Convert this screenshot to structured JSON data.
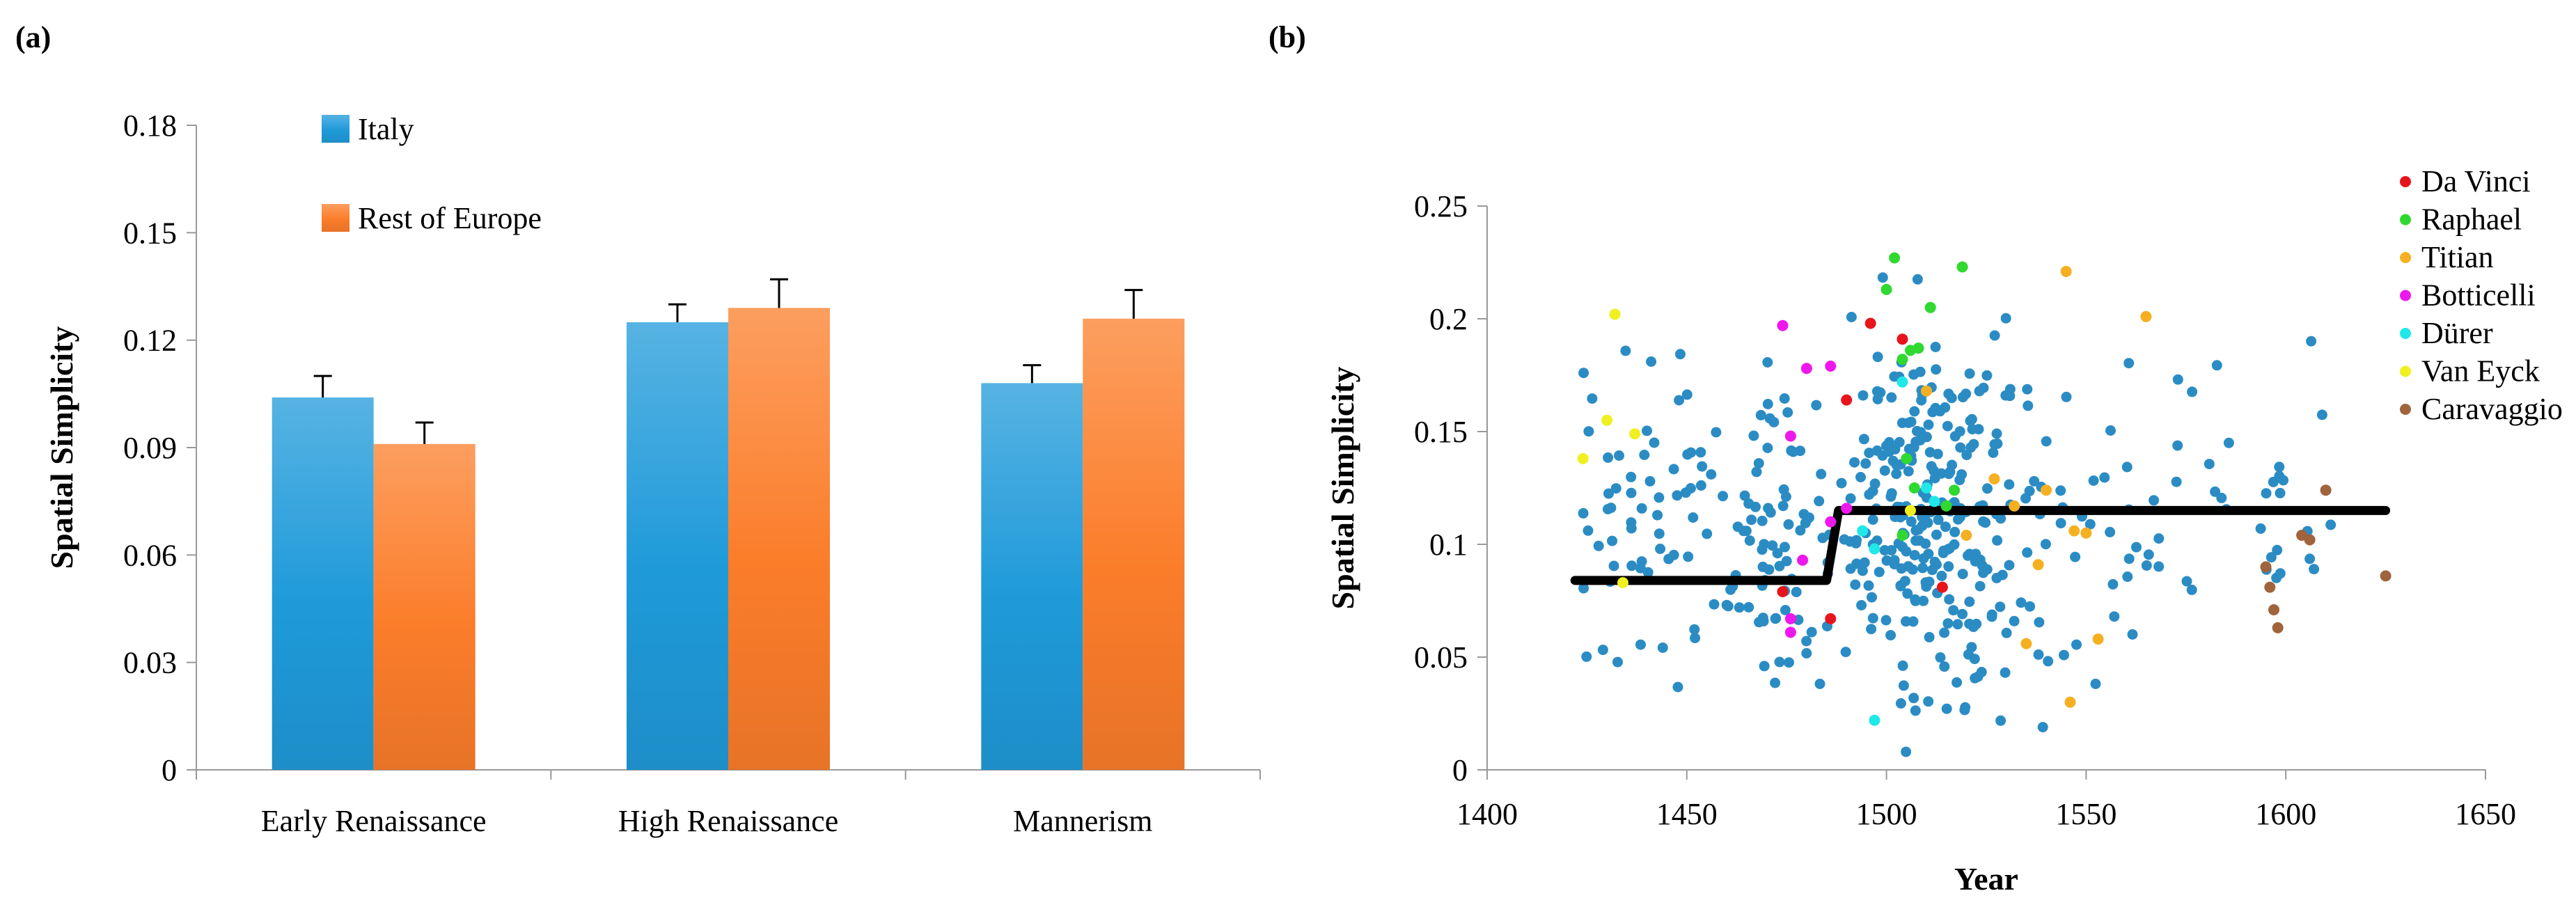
{
  "chart_data": [
    {
      "panel": "(a)",
      "type": "bar",
      "ylabel": "Spatial Simplicity",
      "xlabel": "",
      "ylim": [
        0,
        0.18
      ],
      "yticks": [
        "0",
        "0.03",
        "0.06",
        "0.09",
        "0.12",
        "0.15",
        "0.18"
      ],
      "categories": [
        "Early Renaissance",
        "High Renaissance",
        "Mannerism"
      ],
      "series": [
        {
          "name": "Italy",
          "color": "#1f9ad9",
          "values": [
            0.104,
            0.125,
            0.108
          ],
          "errors": [
            0.006,
            0.005,
            0.005
          ]
        },
        {
          "name": "Rest of Europe",
          "color": "#fb7d2a",
          "values": [
            0.091,
            0.129,
            0.126
          ],
          "errors": [
            0.006,
            0.008,
            0.008
          ]
        }
      ],
      "legend_position": "top-left",
      "error_bars": true
    },
    {
      "panel": "(b)",
      "type": "scatter",
      "xlabel": "Year",
      "ylabel": "Spatial Simplicity",
      "xlim": [
        1400,
        1650
      ],
      "ylim": [
        0,
        0.25
      ],
      "xticks": [
        "1400",
        "1450",
        "1500",
        "1550",
        "1600",
        "1650"
      ],
      "yticks": [
        "0",
        "0.05",
        "0.1",
        "0.15",
        "0.2",
        "0.25"
      ],
      "background_series_color": "#2b8cc4",
      "step_fit": {
        "x": [
          1422,
          1485,
          1488,
          1625
        ],
        "y": [
          0.084,
          0.084,
          0.115,
          0.115
        ],
        "color": "#000000"
      },
      "series": [
        {
          "name": "Da Vinci",
          "color": "#e8141b",
          "points": [
            [
              1474,
              0.079
            ],
            [
              1486,
              0.067
            ],
            [
              1490,
              0.164
            ],
            [
              1496,
              0.198
            ],
            [
              1504,
              0.191
            ],
            [
              1514,
              0.081
            ]
          ]
        },
        {
          "name": "Raphael",
          "color": "#2fd92f",
          "points": [
            [
              1502,
              0.227
            ],
            [
              1504,
              0.182
            ],
            [
              1506,
              0.186
            ],
            [
              1508,
              0.187
            ],
            [
              1511,
              0.205
            ],
            [
              1505,
              0.138
            ],
            [
              1507,
              0.125
            ],
            [
              1504,
              0.104
            ],
            [
              1515,
              0.117
            ],
            [
              1519,
              0.223
            ],
            [
              1517,
              0.124
            ],
            [
              1500,
              0.213
            ]
          ]
        },
        {
          "name": "Titian",
          "color": "#f5b021",
          "points": [
            [
              1510,
              0.168
            ],
            [
              1520,
              0.104
            ],
            [
              1527,
              0.129
            ],
            [
              1532,
              0.117
            ],
            [
              1538,
              0.091
            ],
            [
              1540,
              0.124
            ],
            [
              1545,
              0.221
            ],
            [
              1547,
              0.106
            ],
            [
              1550,
              0.105
            ],
            [
              1553,
              0.058
            ],
            [
              1546,
              0.03
            ],
            [
              1565,
              0.201
            ],
            [
              1535,
              0.056
            ]
          ]
        },
        {
          "name": "Botticelli",
          "color": "#ee18ee",
          "points": [
            [
              1474,
              0.197
            ],
            [
              1480,
              0.178
            ],
            [
              1486,
              0.11
            ],
            [
              1490,
              0.116
            ],
            [
              1476,
              0.148
            ],
            [
              1476,
              0.061
            ],
            [
              1476,
              0.067
            ],
            [
              1479,
              0.093
            ],
            [
              1486,
              0.179
            ]
          ]
        },
        {
          "name": "Dürer",
          "color": "#20e8e8",
          "points": [
            [
              1494,
              0.106
            ],
            [
              1497,
              0.098
            ],
            [
              1497,
              0.022
            ],
            [
              1504,
              0.172
            ],
            [
              1510,
              0.125
            ],
            [
              1512,
              0.119
            ]
          ]
        },
        {
          "name": "Van Eyck",
          "color": "#f0f020",
          "points": [
            [
              1432,
              0.202
            ],
            [
              1430,
              0.155
            ],
            [
              1437,
              0.149
            ],
            [
              1424,
              0.138
            ],
            [
              1434,
              0.083
            ],
            [
              1506,
              0.115
            ]
          ]
        },
        {
          "name": "Caravaggio",
          "color": "#a0633c",
          "points": [
            [
              1595,
              0.09
            ],
            [
              1596,
              0.081
            ],
            [
              1597,
              0.071
            ],
            [
              1598,
              0.063
            ],
            [
              1604,
              0.104
            ],
            [
              1606,
              0.102
            ],
            [
              1610,
              0.124
            ],
            [
              1625,
              0.086
            ]
          ]
        }
      ],
      "legend_position": "top-right"
    }
  ]
}
